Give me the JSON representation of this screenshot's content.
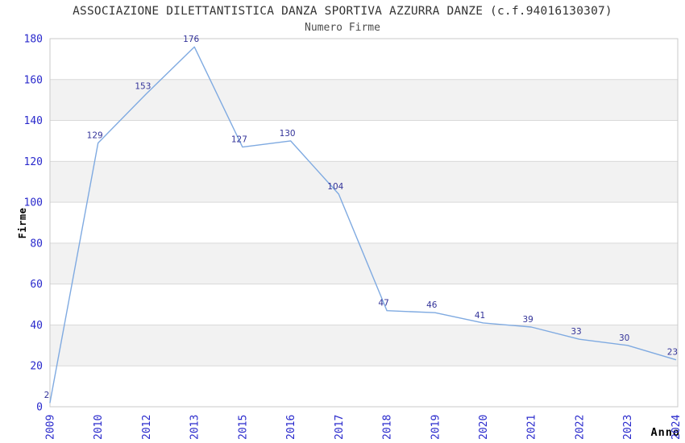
{
  "chart_data": {
    "type": "line",
    "title": "ASSOCIAZIONE DILETTANTISTICA DANZA SPORTIVA AZZURRA DANZE (c.f.94016130307)",
    "subtitle": "Numero Firme",
    "xlabel": "Anno",
    "ylabel": "Firme",
    "categories": [
      "2009",
      "2010",
      "2012",
      "2013",
      "2015",
      "2016",
      "2017",
      "2018",
      "2019",
      "2020",
      "2021",
      "2022",
      "2023",
      "2024"
    ],
    "values": [
      2,
      129,
      153,
      176,
      127,
      130,
      104,
      47,
      46,
      41,
      39,
      33,
      30,
      23
    ],
    "ylim": [
      0,
      180
    ],
    "ytick_step": 20,
    "yticks": [
      0,
      20,
      40,
      60,
      80,
      100,
      120,
      140,
      160,
      180
    ],
    "legend": "none",
    "grid": "horizontal",
    "background_bands": "alternating white/gray every 20 units, gray on 20-40, 60-80, 100-120, 140-160",
    "point_markers": false,
    "colors": {
      "line": "#7faae1",
      "value_label": "#333399",
      "tick_label": "#2929cc",
      "band_gray": "#f2f2f2",
      "band_white": "#ffffff",
      "grid_line": "#d9d9d9",
      "plot_border": "#c9c9c9",
      "title": "#333333",
      "subtitle": "#4d4d4d",
      "axis_title": "#000000"
    }
  }
}
